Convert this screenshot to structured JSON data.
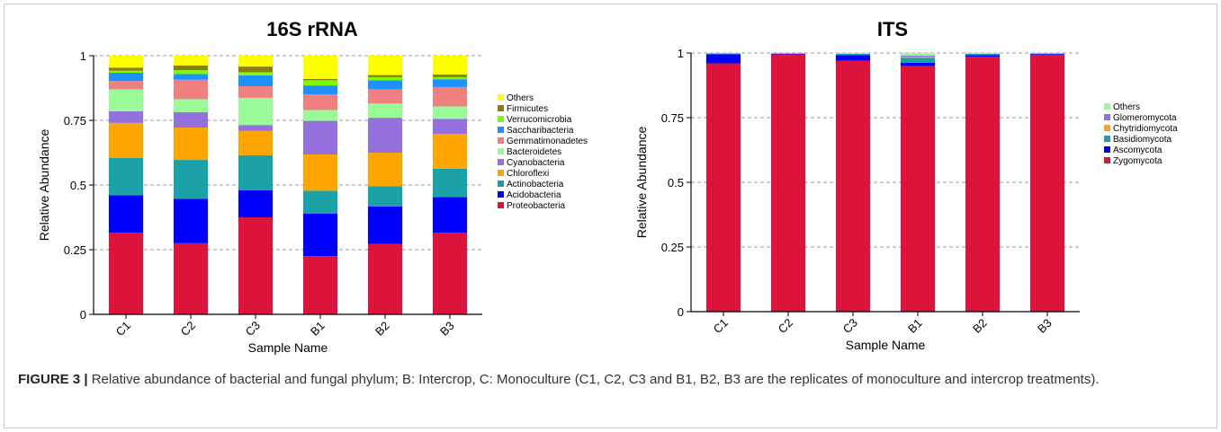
{
  "caption": {
    "label": "FIGURE 3 |",
    "text": " Relative abundance of bacterial and fungal phylum; B: Intercrop, C: Monoculture (C1, C2, C3 and B1, B2, B3 are the replicates of monoculture and intercrop treatments)."
  },
  "chart_data": [
    {
      "type": "bar",
      "stacked": true,
      "title": "16S rRNA",
      "xlabel": "Sample Name",
      "ylabel": "Relative Abundance",
      "ylim": [
        0,
        1
      ],
      "yticks": [
        "0",
        "0.25",
        "0.5",
        "0.75",
        "1"
      ],
      "grid": "dashed horizontal",
      "legend": "right",
      "categories": [
        "C1",
        "C2",
        "C3",
        "B1",
        "B2",
        "B3"
      ],
      "series": [
        {
          "name": "Proteobacteria",
          "color": "#dc143c",
          "values": [
            0.315,
            0.275,
            0.375,
            0.225,
            0.272,
            0.315
          ]
        },
        {
          "name": "Acidobacteria",
          "color": "#0000ff",
          "values": [
            0.145,
            0.172,
            0.105,
            0.165,
            0.145,
            0.138
          ]
        },
        {
          "name": "Actinobacteria",
          "color": "#1aa1a8",
          "values": [
            0.145,
            0.15,
            0.135,
            0.088,
            0.078,
            0.11
          ]
        },
        {
          "name": "Chloroflexi",
          "color": "#ffa500",
          "values": [
            0.135,
            0.125,
            0.095,
            0.14,
            0.13,
            0.135
          ]
        },
        {
          "name": "Cyanobacteria",
          "color": "#9370db",
          "values": [
            0.045,
            0.06,
            0.022,
            0.13,
            0.135,
            0.058
          ]
        },
        {
          "name": "Bacteroidetes",
          "color": "#98fb98",
          "values": [
            0.085,
            0.05,
            0.105,
            0.042,
            0.055,
            0.048
          ]
        },
        {
          "name": "Gemmatimonadetes",
          "color": "#f08080",
          "values": [
            0.032,
            0.075,
            0.045,
            0.06,
            0.055,
            0.075
          ]
        },
        {
          "name": "Saccharibacteria",
          "color": "#1e90ff",
          "values": [
            0.032,
            0.022,
            0.042,
            0.035,
            0.035,
            0.03
          ]
        },
        {
          "name": "Verrucomicrobia",
          "color": "#7cfc00",
          "values": [
            0.008,
            0.015,
            0.012,
            0.02,
            0.012,
            0.008
          ]
        },
        {
          "name": "Firmicutes",
          "color": "#8b7d0b",
          "values": [
            0.012,
            0.018,
            0.022,
            0.005,
            0.008,
            0.01
          ]
        },
        {
          "name": "Others",
          "color": "#ffff00",
          "values": [
            0.046,
            0.038,
            0.042,
            0.09,
            0.075,
            0.073
          ]
        }
      ]
    },
    {
      "type": "bar",
      "stacked": true,
      "title": "ITS",
      "xlabel": "Sample Name",
      "ylabel": "Relative Abundance",
      "ylim": [
        0,
        1
      ],
      "yticks": [
        "0",
        "0.25",
        "0.5",
        "0.75",
        "1"
      ],
      "grid": "dashed horizontal",
      "legend": "right",
      "categories": [
        "C1",
        "C2",
        "C3",
        "B1",
        "B2",
        "B3"
      ],
      "series": [
        {
          "name": "Zygomycota",
          "color": "#dc143c",
          "values": [
            0.96,
            0.995,
            0.97,
            0.95,
            0.985,
            0.993
          ]
        },
        {
          "name": "Ascomycota",
          "color": "#0000ff",
          "values": [
            0.035,
            0.002,
            0.022,
            0.012,
            0.007,
            0.003
          ]
        },
        {
          "name": "Basidiomycota",
          "color": "#1aa1a8",
          "values": [
            0.003,
            0.002,
            0.005,
            0.02,
            0.005,
            0.002
          ]
        },
        {
          "name": "Chytridiomycota",
          "color": "#ffa500",
          "values": [
            0,
            0,
            0,
            0.004,
            0,
            0
          ]
        },
        {
          "name": "Glomeromycota",
          "color": "#9370db",
          "values": [
            0,
            0,
            0,
            0.004,
            0,
            0
          ]
        },
        {
          "name": "Others",
          "color": "#98fb98",
          "values": [
            0.002,
            0.001,
            0.003,
            0.01,
            0.003,
            0.002
          ]
        }
      ]
    }
  ]
}
